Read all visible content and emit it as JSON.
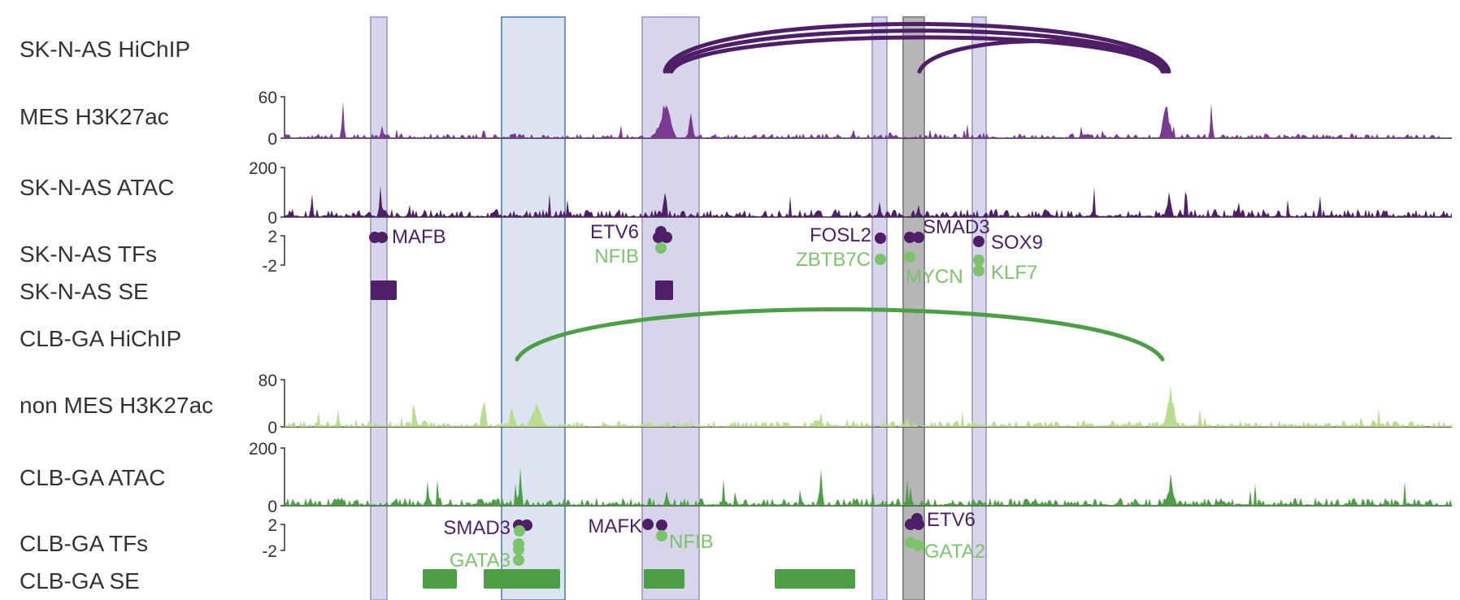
{
  "track_labels": [
    "SK-N-AS HiChIP",
    "MES H3K27ac",
    "SK-N-AS ATAC",
    "SK-N-AS TFs",
    "SK-N-AS SE",
    "CLB-GA HiChIP",
    "non MES H3K27ac",
    "CLB-GA ATAC",
    "CLB-GA TFs",
    "CLB-GA SE"
  ],
  "axis_ticks": {
    "mes_h3k27ac": [
      "60",
      "0"
    ],
    "skn_atac": [
      "200",
      "0"
    ],
    "skn_tfs": [
      "2",
      "-2"
    ],
    "non_mes_h3k27ac": [
      "80",
      "0"
    ],
    "clb_atac": [
      "200",
      "0"
    ],
    "clb_tfs": [
      "2",
      "-2"
    ]
  },
  "tf_labels": {
    "skn": [
      "MAFB",
      "ETV6",
      "NFIB",
      "FOSL2",
      "ZBTB7C",
      "SMAD3",
      "MYCN",
      "SOX9",
      "KLF7"
    ],
    "clb": [
      "SMAD3",
      "GATA3",
      "MAFK",
      "NFIB",
      "ETV6",
      "GATA2"
    ]
  },
  "colors": {
    "purple": "#4e1f66",
    "purple_signal": "#7b3a91",
    "light_purple": "#c9c7e3",
    "light_blue": "#d6dfee",
    "blue_outline": "#6f93c8",
    "grey": "#9e9e9e",
    "green": "#4e9e48",
    "light_green": "#7cc36c",
    "pale_green": "#b9dc8e"
  }
}
